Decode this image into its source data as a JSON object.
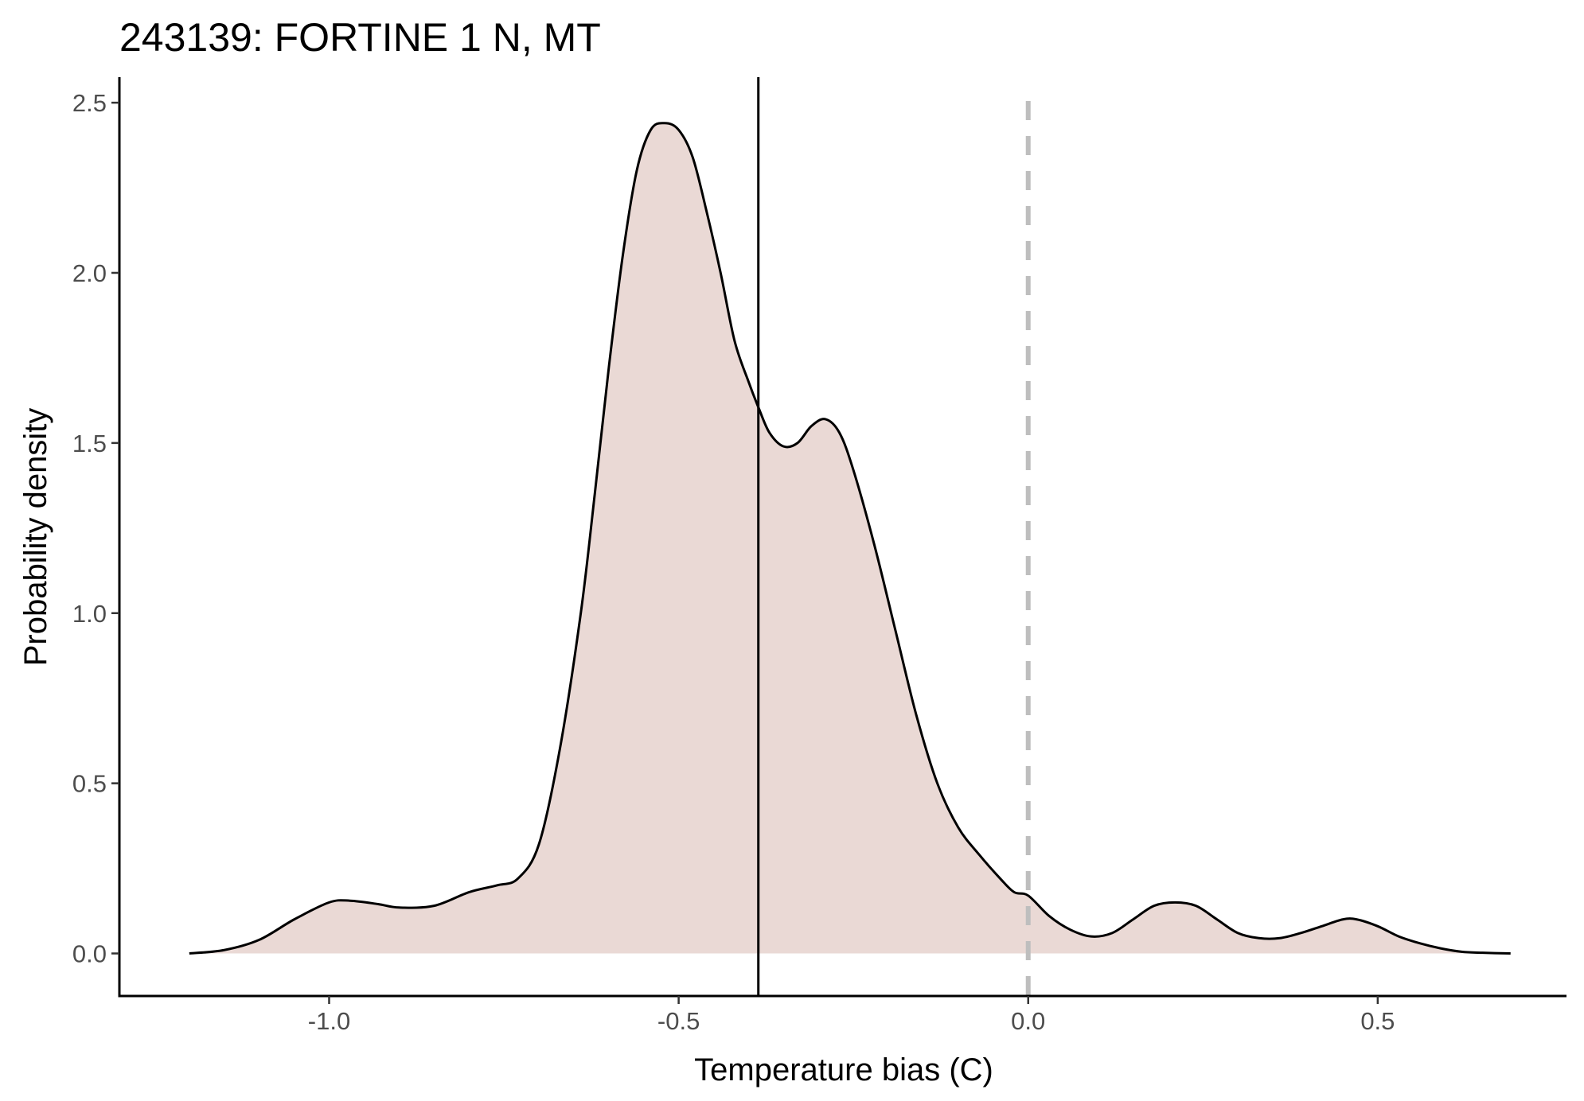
{
  "chart_data": {
    "type": "area",
    "title": "243139: FORTINE 1 N, MT",
    "xlabel": "Temperature bias (C)",
    "ylabel": "Probability density",
    "xlim": [
      -1.3,
      0.77
    ],
    "ylim": [
      -0.125,
      2.575
    ],
    "x_ticks": [
      -1.0,
      -0.5,
      0.0,
      0.5
    ],
    "x_tick_labels": [
      "-1.0",
      "-0.5",
      "0.0",
      "0.5"
    ],
    "y_ticks": [
      0.0,
      0.5,
      1.0,
      1.5,
      2.0,
      2.5
    ],
    "y_tick_labels": [
      "0.0",
      "0.5",
      "1.0",
      "1.5",
      "2.0",
      "2.5"
    ],
    "grid": false,
    "legend": "none",
    "fill_color": "#ead9d5",
    "line_color": "#000000",
    "mean_line": {
      "x": -0.386,
      "color": "#000000",
      "style": "solid"
    },
    "reference_line": {
      "x": 0.0,
      "color": "#bebebe",
      "style": "dashed"
    },
    "series": [
      {
        "x": [
          -1.2,
          -1.15,
          -1.1,
          -1.05,
          -1.0,
          -0.97,
          -0.93,
          -0.9,
          -0.85,
          -0.8,
          -0.76,
          -0.73,
          -0.7,
          -0.67,
          -0.64,
          -0.62,
          -0.6,
          -0.58,
          -0.56,
          -0.54,
          -0.52,
          -0.5,
          -0.48,
          -0.46,
          -0.44,
          -0.42,
          -0.4,
          -0.385,
          -0.37,
          -0.35,
          -0.33,
          -0.31,
          -0.29,
          -0.27,
          -0.25,
          -0.22,
          -0.19,
          -0.16,
          -0.13,
          -0.1,
          -0.07,
          -0.04,
          -0.02,
          0.0,
          0.03,
          0.06,
          0.09,
          0.12,
          0.15,
          0.18,
          0.21,
          0.24,
          0.27,
          0.3,
          0.33,
          0.36,
          0.39,
          0.42,
          0.45,
          0.47,
          0.5,
          0.53,
          0.56,
          0.59,
          0.62,
          0.65,
          0.69
        ],
        "values": [
          0.0,
          0.01,
          0.04,
          0.1,
          0.15,
          0.155,
          0.145,
          0.135,
          0.14,
          0.18,
          0.2,
          0.22,
          0.32,
          0.6,
          1.0,
          1.35,
          1.72,
          2.05,
          2.3,
          2.42,
          2.44,
          2.42,
          2.34,
          2.18,
          2.0,
          1.8,
          1.68,
          1.6,
          1.53,
          1.49,
          1.5,
          1.55,
          1.57,
          1.53,
          1.42,
          1.2,
          0.95,
          0.7,
          0.5,
          0.37,
          0.29,
          0.22,
          0.18,
          0.17,
          0.11,
          0.07,
          0.05,
          0.06,
          0.1,
          0.14,
          0.15,
          0.14,
          0.1,
          0.06,
          0.045,
          0.045,
          0.06,
          0.08,
          0.1,
          0.1,
          0.08,
          0.05,
          0.03,
          0.015,
          0.005,
          0.002,
          0.0
        ]
      }
    ]
  }
}
